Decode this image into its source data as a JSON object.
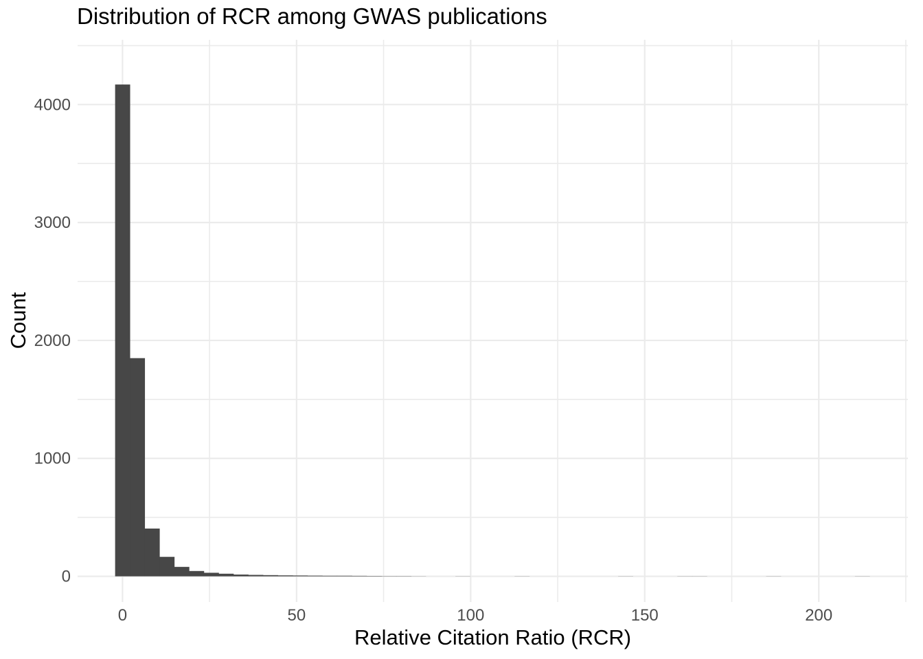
{
  "title": "Distribution of RCR among GWAS publications",
  "chart_data": {
    "type": "bar",
    "subtype": "histogram",
    "title": "Distribution of RCR among GWAS publications",
    "xlabel": "Relative Citation Ratio (RCR)",
    "ylabel": "Count",
    "legend": "none",
    "grid": "on",
    "bin_width": 4.25,
    "bin_centers": [
      0,
      4.25,
      8.5,
      12.75,
      17,
      21.25,
      25.5,
      29.75,
      34,
      38.25,
      42.5,
      46.75,
      51,
      55.25,
      59.5,
      63.75,
      68,
      72.25,
      76.5,
      80.75,
      85,
      89.25,
      93.5,
      97.75,
      102,
      106.25,
      110.5,
      114.75,
      119,
      123.25,
      127.5,
      131.75,
      136,
      140.25,
      144.5,
      148.75,
      153,
      157.25,
      161.5,
      165.75,
      170,
      174.25,
      178.5,
      182.75,
      187,
      191.25,
      195.5,
      199.75,
      204,
      208.25,
      212.5
    ],
    "counts": [
      4170,
      1850,
      405,
      165,
      80,
      45,
      30,
      22,
      15,
      12,
      10,
      8,
      7,
      6,
      5,
      5,
      4,
      3,
      2,
      2,
      1,
      0,
      0,
      1,
      0,
      0,
      0,
      1,
      0,
      0,
      0,
      0,
      0,
      0,
      1,
      0,
      0,
      0,
      1,
      1,
      0,
      0,
      0,
      0,
      1,
      0,
      0,
      0,
      0,
      0,
      1
    ],
    "x_major_ticks": [
      0,
      50,
      100,
      150,
      200
    ],
    "x_minor_ticks": [
      25,
      75,
      125,
      175,
      225
    ],
    "y_major_ticks": [
      0,
      1000,
      2000,
      3000,
      4000
    ],
    "y_minor_ticks": [
      500,
      1500,
      2500,
      3500,
      4500
    ],
    "x_tick_labels": [
      "0",
      "50",
      "100",
      "150",
      "200"
    ],
    "y_tick_labels": [
      "0",
      "1000",
      "2000",
      "3000",
      "4000"
    ],
    "xlim": [
      -12.9,
      225.6
    ],
    "ylim": [
      -218,
      4549
    ],
    "colors": {
      "bar_fill": "#474747",
      "grid": "#EBEBEB",
      "tick_label": "#4D4D4D",
      "title": "#000000",
      "axis_title": "#000000",
      "background": "#FFFFFF"
    }
  }
}
